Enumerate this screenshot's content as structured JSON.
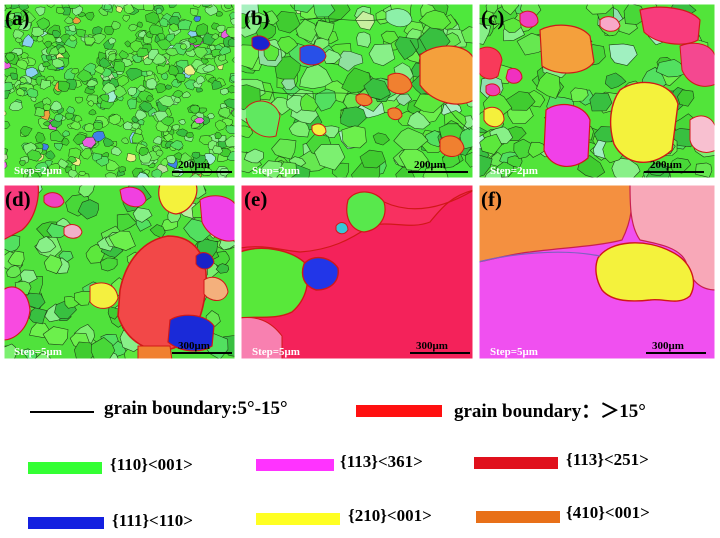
{
  "panels": [
    {
      "label": "(a)",
      "step": "Step=2μm",
      "scale": "200μm"
    },
    {
      "label": "(b)",
      "step": "Step=2μm",
      "scale": "200μm"
    },
    {
      "label": "(c)",
      "step": "Step=2μm",
      "scale": "200μm"
    },
    {
      "label": "(d)",
      "step": "Step=5μm",
      "scale": "300μm"
    },
    {
      "label": "(e)",
      "step": "Step=5μm",
      "scale": "300μm"
    },
    {
      "label": "(f)",
      "step": "Step=5μm",
      "scale": "300μm"
    }
  ],
  "legend": {
    "boundary_low": {
      "text": "grain boundary:5°-15°",
      "color": "#000000"
    },
    "boundary_high": {
      "text": "grain boundary：＞15°",
      "color": "#ff1010"
    },
    "orientations": [
      {
        "text": "{110}<001>",
        "color": "#33ff33"
      },
      {
        "text": "{113}<361>",
        "color": "#ff33ff"
      },
      {
        "text": "{113}<251>",
        "color": "#e0101c"
      },
      {
        "text": "{111}<110>",
        "color": "#1420e0"
      },
      {
        "text": "{210}<001>",
        "color": "#ffff22"
      },
      {
        "text": "{410}<001>",
        "color": "#e87018"
      }
    ]
  }
}
